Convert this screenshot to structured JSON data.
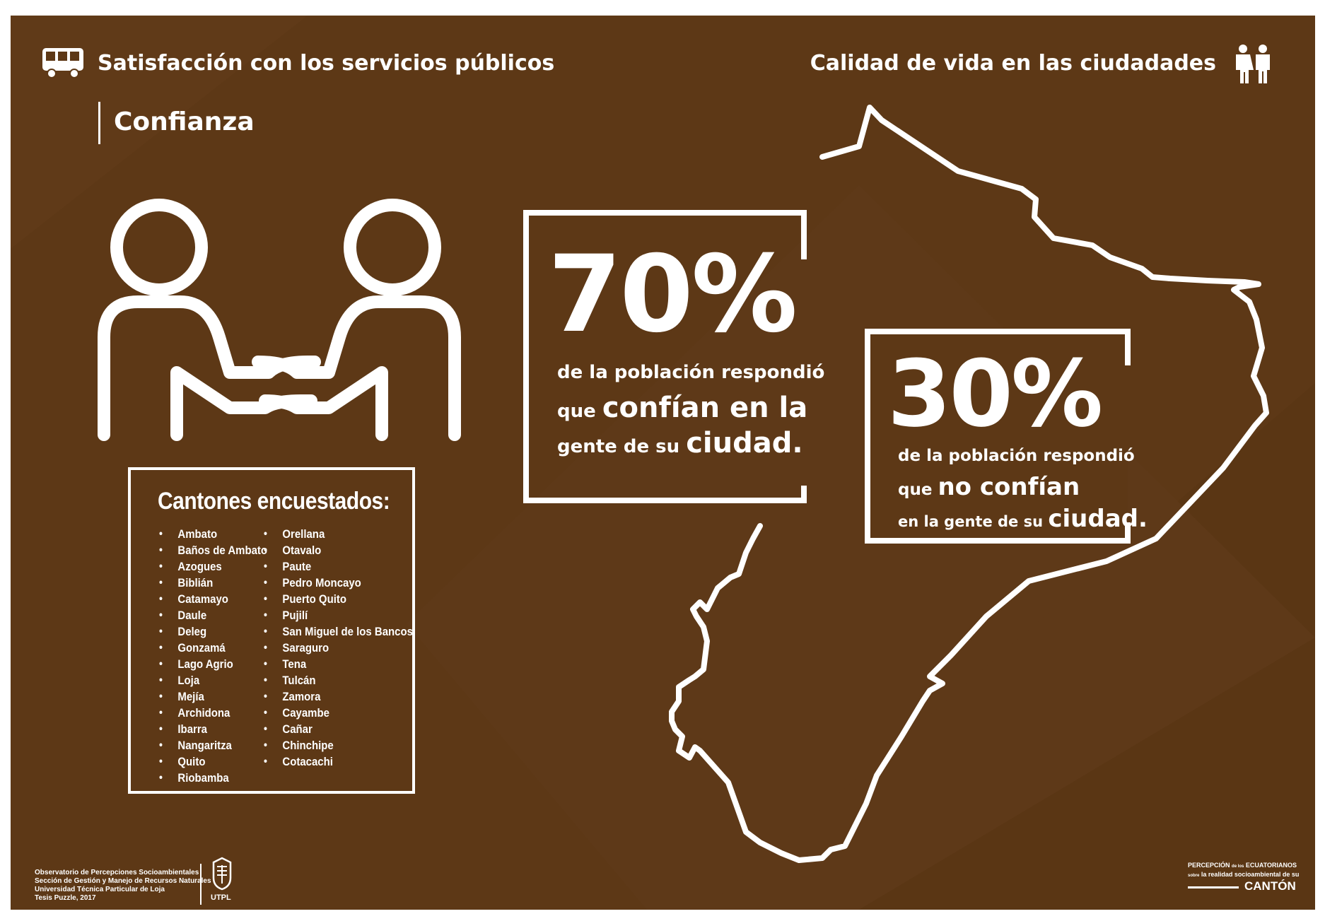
{
  "header": {
    "left_title": "Satisfacción con los servicios públicos",
    "right_title": "Calidad de vida en las ciudadades",
    "section": "Confianza",
    "left_icon": "bus-icon",
    "right_icon": "people-icon"
  },
  "stat_trust": {
    "value": "70%",
    "line1": "de la población respondió",
    "line2_small": "que",
    "line2_big": "confían en la",
    "line3_small": "gente de su",
    "line3_big": "ciudad."
  },
  "stat_distrust": {
    "value": "30%",
    "line1": "de la población respondió",
    "line2_small": "que",
    "line2_big": "no confían",
    "line3_small": "en la gente de su",
    "line3_big": "ciudad."
  },
  "cantones": {
    "title": "Cantones encuestados:",
    "col1": [
      "Ambato",
      "Baños de Ambato",
      "Azogues",
      "Biblián",
      "Catamayo",
      "Daule",
      "Deleg",
      "Gonzamá",
      "Lago Agrio",
      "Loja",
      "Mejía",
      "Archidona",
      "Ibarra",
      "Nangaritza",
      "Quito",
      "Riobamba"
    ],
    "col2": [
      "Orellana",
      "Otavalo",
      "Paute",
      "Pedro Moncayo",
      "Puerto Quito",
      "Pujilí",
      "San Miguel de los Bancos",
      "Saraguro",
      "Tena",
      "Tulcán",
      "Zamora",
      "Cayambe",
      "Cañar",
      "Chinchipe",
      "Cotacachi"
    ]
  },
  "footer": {
    "org_lines": [
      "Observatorio de Percepciones Socioambientales",
      "Sección de Gestión y Manejo de Recursos Naturales",
      "Universidad Técnica Particular de Loja",
      "Tesis Puzzle, 2017"
    ],
    "utpl": "UTPL",
    "brand_top_left": "PERCEPCIÓN",
    "brand_top_small": "de los",
    "brand_top_right": "ECUATORIANOS",
    "brand_side_small": "sobre",
    "brand_middle": "la realidad socioambiental de su",
    "brand_bottom": "CANTÓN"
  },
  "colors": {
    "background": "#5d3816",
    "foreground": "#ffffff"
  }
}
